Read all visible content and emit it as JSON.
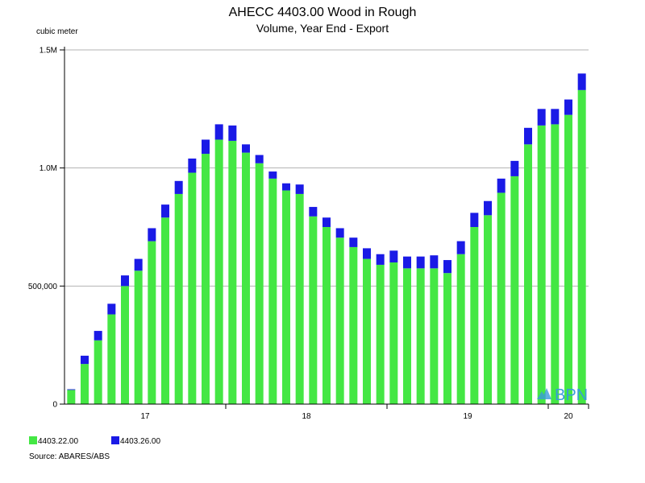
{
  "chart_data": {
    "type": "bar",
    "stacked": true,
    "title": "AHECC 4403.00 Wood in Rough",
    "subtitle": "Volume, Year End - Export",
    "ylabel": "cubic meter",
    "ylim": [
      0,
      1500000
    ],
    "y_ticks": [
      {
        "value": 0,
        "label": "0"
      },
      {
        "value": 500000,
        "label": "500,000"
      },
      {
        "value": 1000000,
        "label": "1.0M"
      },
      {
        "value": 1500000,
        "label": "1.5M"
      }
    ],
    "x_tick_labels": [
      {
        "label": "17",
        "bar": 5.5
      },
      {
        "label": "18",
        "bar": 17.5
      },
      {
        "label": "19",
        "bar": 29.5
      },
      {
        "label": "20",
        "bar": 37
      }
    ],
    "x_year_boundaries": [
      11.5,
      23.5,
      35.5
    ],
    "grid": true,
    "legend_position": "bottom-left",
    "series": [
      {
        "name": "4403.22.00",
        "color": "#44e744",
        "values": [
          60000,
          170000,
          270000,
          380000,
          500000,
          565000,
          690000,
          790000,
          890000,
          980000,
          1060000,
          1120000,
          1115000,
          1065000,
          1020000,
          955000,
          905000,
          890000,
          795000,
          750000,
          705000,
          665000,
          615000,
          590000,
          600000,
          575000,
          575000,
          575000,
          555000,
          635000,
          750000,
          800000,
          895000,
          965000,
          1100000,
          1180000,
          1185000,
          1225000,
          1330000
        ]
      },
      {
        "name": "4403.26.00",
        "color": "#1a1ae6",
        "values": [
          3000,
          35000,
          40000,
          45000,
          45000,
          50000,
          55000,
          55000,
          55000,
          60000,
          60000,
          65000,
          65000,
          35000,
          35000,
          30000,
          30000,
          40000,
          40000,
          40000,
          40000,
          40000,
          45000,
          45000,
          50000,
          50000,
          50000,
          55000,
          55000,
          55000,
          60000,
          60000,
          60000,
          65000,
          70000,
          70000,
          65000,
          65000,
          70000
        ]
      }
    ]
  },
  "source": "Source: ABARES/ABS",
  "logo": {
    "text": "BPN",
    "color": "#3a9bd9"
  }
}
